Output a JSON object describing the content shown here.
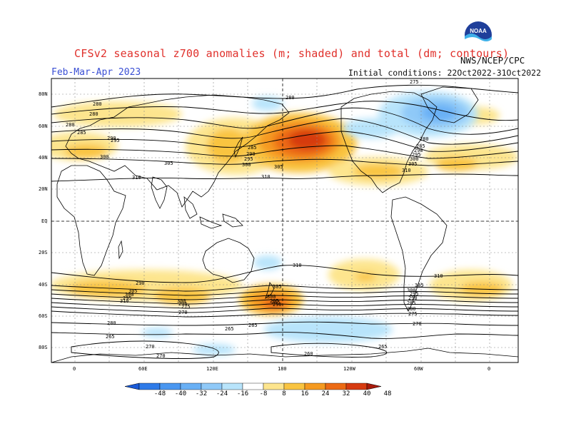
{
  "header": {
    "title": "CFSv2 seasonal z700 anomalies (m; shaded) and total (dm; contours)",
    "agency": "NWS/NCEP/CPC",
    "season": "Feb-Mar-Apr 2023",
    "initial_conditions": "Initial conditions: 22Oct2022-31Oct2022",
    "logo_text": "NOAA"
  },
  "map": {
    "lat_labels": [
      "80N",
      "60N",
      "40N",
      "20N",
      "EQ",
      "20S",
      "40S",
      "60S",
      "80S"
    ],
    "lon_labels": [
      "0",
      "60E",
      "120E",
      "180",
      "120W",
      "60W",
      "0"
    ],
    "contour_labels": [
      "280",
      "280",
      "280",
      "285",
      "290",
      "295",
      "300",
      "305",
      "310",
      "280",
      "285",
      "290",
      "295",
      "300",
      "305",
      "285",
      "290",
      "295",
      "300",
      "305",
      "310",
      "275",
      "280",
      "285",
      "290",
      "295",
      "300",
      "305",
      "310",
      "305",
      "300",
      "295",
      "290",
      "285",
      "280",
      "275",
      "270",
      "305",
      "300",
      "295",
      "290",
      "310",
      "300",
      "295",
      "290",
      "285",
      "280",
      "275",
      "270",
      "265",
      "265",
      "265",
      "270",
      "270",
      "265",
      "260",
      "265",
      "275",
      "280",
      "285",
      "290",
      "295",
      "300",
      "305",
      "310",
      "305",
      "300",
      "295",
      "290",
      "285",
      "280",
      "275",
      "270",
      "265"
    ],
    "colors": {
      "land_outline": "#000000",
      "contour": "#000000",
      "grid": "#666666"
    }
  },
  "colorbar": {
    "ticks": [
      "-48",
      "-40",
      "-32",
      "-24",
      "-16",
      "-8",
      "8",
      "16",
      "24",
      "32",
      "40",
      "48"
    ],
    "colors": [
      "#1a5ad7",
      "#2f7be8",
      "#4a97f0",
      "#69b0f5",
      "#8fc9f8",
      "#b8e4fb",
      "#ffffff",
      "#fde58e",
      "#f9c441",
      "#f59a20",
      "#ec6a14",
      "#d63b10",
      "#a81b0b"
    ]
  }
}
